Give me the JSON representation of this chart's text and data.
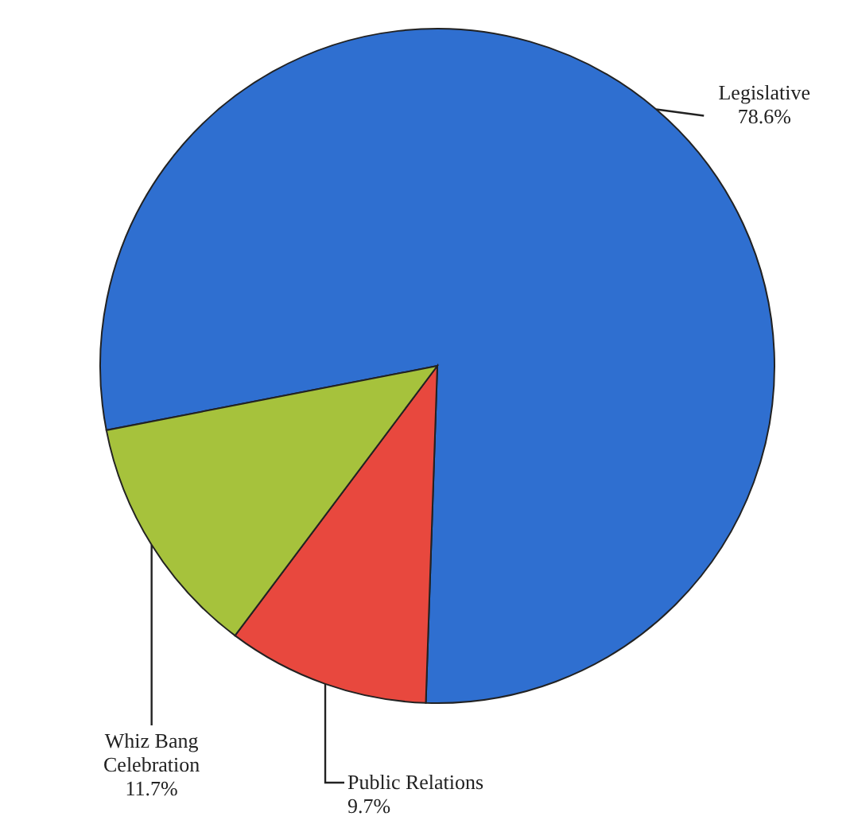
{
  "chart_data": {
    "type": "pie",
    "categories": [
      "Legislative",
      "Public Relations",
      "Whiz Bang Celebration"
    ],
    "values": [
      78.6,
      9.7,
      11.7
    ],
    "colors": [
      "#2f6fd0",
      "#e8483e",
      "#a6c23c"
    ],
    "value_labels": [
      "78.6%",
      "9.7%",
      "11.7%"
    ]
  }
}
